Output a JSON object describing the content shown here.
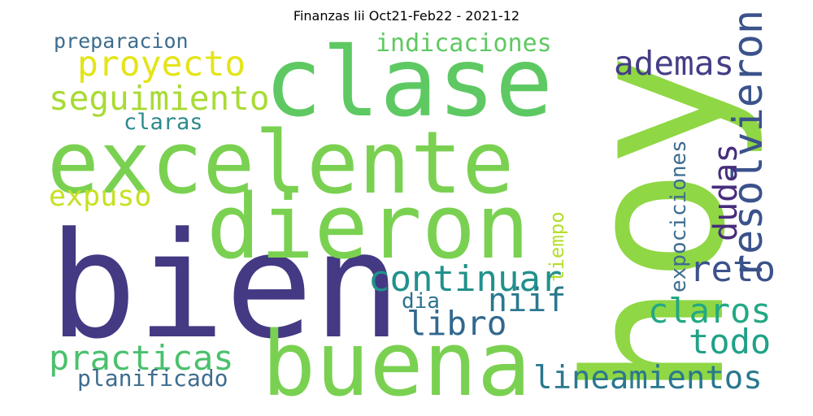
{
  "title": "Finanzas Iii Oct21-Feb22 - 2021-12",
  "words": [
    {
      "text": "hoy",
      "color": "#8fd744",
      "orientation": "vertical"
    },
    {
      "text": "bien",
      "color": "#443983",
      "orientation": "horizontal"
    },
    {
      "text": "excelente",
      "color": "#7ad151",
      "orientation": "horizontal"
    },
    {
      "text": "clase",
      "color": "#5ec962",
      "orientation": "horizontal"
    },
    {
      "text": "buena",
      "color": "#7ad151",
      "orientation": "horizontal"
    },
    {
      "text": "dieron",
      "color": "#7ad151",
      "orientation": "horizontal"
    },
    {
      "text": "proyecto",
      "color": "#e4e419",
      "orientation": "horizontal"
    },
    {
      "text": "seguimiento",
      "color": "#a8db34",
      "orientation": "horizontal"
    },
    {
      "text": "preparacion",
      "color": "#3e6d8e",
      "orientation": "horizontal"
    },
    {
      "text": "indicaciones",
      "color": "#5ec962",
      "orientation": "horizontal"
    },
    {
      "text": "claras",
      "color": "#2c8a8c",
      "orientation": "horizontal"
    },
    {
      "text": "expuso",
      "color": "#c8e020",
      "orientation": "horizontal"
    },
    {
      "text": "ademas",
      "color": "#433e85",
      "orientation": "horizontal"
    },
    {
      "text": "resolvieron",
      "color": "#3b528b",
      "orientation": "vertical"
    },
    {
      "text": "dudas",
      "color": "#472d7b",
      "orientation": "vertical"
    },
    {
      "text": "expociciones",
      "color": "#3e6d8e",
      "orientation": "vertical"
    },
    {
      "text": "tiempo",
      "color": "#b5de2b",
      "orientation": "vertical"
    },
    {
      "text": "continuar",
      "color": "#21918c",
      "orientation": "horizontal"
    },
    {
      "text": "reto",
      "color": "#3b528b",
      "orientation": "horizontal"
    },
    {
      "text": "niif",
      "color": "#2a788e",
      "orientation": "horizontal"
    },
    {
      "text": "dia",
      "color": "#2c728e",
      "orientation": "horizontal"
    },
    {
      "text": "libro",
      "color": "#31688e",
      "orientation": "horizontal"
    },
    {
      "text": "claros",
      "color": "#22a884",
      "orientation": "horizontal"
    },
    {
      "text": "todo",
      "color": "#1fa187",
      "orientation": "horizontal"
    },
    {
      "text": "practicas",
      "color": "#4ac16d",
      "orientation": "horizontal"
    },
    {
      "text": "planificado",
      "color": "#3e6d8e",
      "orientation": "horizontal"
    },
    {
      "text": "lineamientos",
      "color": "#2a788e",
      "orientation": "horizontal"
    }
  ]
}
